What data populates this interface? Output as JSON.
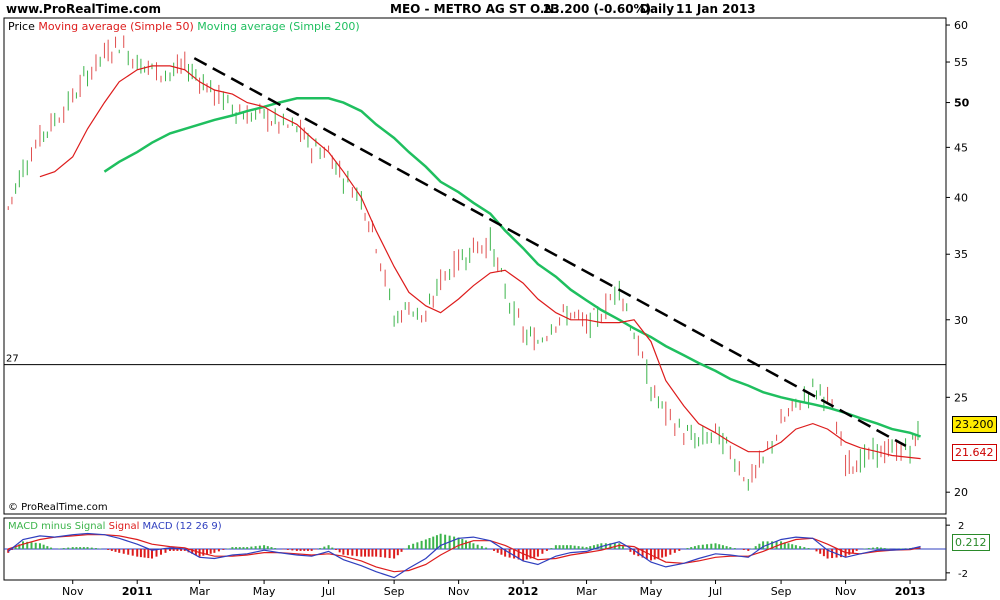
{
  "header": {
    "site": "www.ProRealTime.com",
    "instrument": "MEO - METRO AG ST O.N.",
    "quote": "23.200 (-0.60%)",
    "period": "Daily",
    "date": "11 Jan 2013"
  },
  "watermark": "© ProRealTime.com",
  "colors": {
    "price_up": "#3cb44b",
    "price_down": "#e05050",
    "sma50": "#dd1c1c",
    "sma200": "#1fbf5f",
    "trendline": "#000000",
    "macd": "#2f3fbf",
    "histogram": "#3cb44b",
    "signal": "#dd1c1c"
  },
  "chart_data": [
    {
      "type": "line",
      "name": "price",
      "legend": {
        "price": "Price",
        "sma50": "Moving average (Simple 50)",
        "sma200": "Moving average (Simple 200)"
      },
      "scale": "log",
      "ylim": [
        19,
        61
      ],
      "yticks": [
        20,
        25,
        30,
        35,
        40,
        45,
        50,
        55,
        60
      ],
      "bold_ticks": [
        50
      ],
      "reference_line": {
        "value": 27,
        "label": "27"
      },
      "xticks": [
        "Nov",
        "2011",
        "Mar",
        "May",
        "Jul",
        "Sep",
        "Nov",
        "2012",
        "Mar",
        "May",
        "Jul",
        "Sep",
        "Nov",
        "2013"
      ],
      "x": [
        "2010-09-01",
        "2010-09-15",
        "2010-10-01",
        "2010-10-15",
        "2010-11-01",
        "2010-11-15",
        "2010-12-01",
        "2010-12-15",
        "2011-01-01",
        "2011-01-15",
        "2011-02-01",
        "2011-02-15",
        "2011-03-01",
        "2011-03-15",
        "2011-04-01",
        "2011-04-15",
        "2011-05-01",
        "2011-05-15",
        "2011-06-01",
        "2011-06-15",
        "2011-07-01",
        "2011-07-15",
        "2011-08-01",
        "2011-08-15",
        "2011-09-01",
        "2011-09-15",
        "2011-10-01",
        "2011-10-15",
        "2011-11-01",
        "2011-11-15",
        "2011-12-01",
        "2011-12-15",
        "2012-01-01",
        "2012-01-15",
        "2012-02-01",
        "2012-02-15",
        "2012-03-01",
        "2012-03-15",
        "2012-04-01",
        "2012-04-15",
        "2012-05-01",
        "2012-05-15",
        "2012-06-01",
        "2012-06-15",
        "2012-07-01",
        "2012-07-15",
        "2012-08-01",
        "2012-08-15",
        "2012-09-01",
        "2012-09-15",
        "2012-10-01",
        "2012-10-15",
        "2012-11-01",
        "2012-11-15",
        "2012-12-01",
        "2012-12-15",
        "2013-01-01",
        "2013-01-11"
      ],
      "price": [
        39,
        43,
        46,
        48,
        50.5,
        53.5,
        56,
        57.5,
        55,
        54,
        53.5,
        54.5,
        53,
        51,
        49.5,
        48.5,
        48.5,
        47.5,
        47,
        45,
        44.5,
        42,
        40,
        36,
        30,
        31,
        30,
        33,
        34.5,
        35.5,
        36,
        32,
        29,
        28.5,
        30,
        30.5,
        29.5,
        30.5,
        32.5,
        29,
        25.5,
        24,
        23,
        22.5,
        23,
        22,
        20.5,
        21.5,
        23.5,
        24.5,
        25.5,
        25,
        21.5,
        21.5,
        22,
        22,
        22.2,
        23.2
      ],
      "sma50": [
        null,
        null,
        42,
        42.5,
        44,
        47,
        50,
        52.5,
        54,
        54.5,
        54.5,
        54,
        52.5,
        51.5,
        51,
        50,
        49.5,
        48.5,
        47.5,
        46,
        44.5,
        42.5,
        40,
        37,
        34,
        32,
        31,
        30.5,
        31.5,
        32.5,
        33.5,
        33.7,
        32.7,
        31.5,
        30.5,
        30,
        30,
        29.8,
        29.8,
        30,
        28.5,
        26,
        24.5,
        23.5,
        23,
        22.5,
        22,
        22,
        22.5,
        23.2,
        23.5,
        23.2,
        22.5,
        22.2,
        22,
        21.8,
        21.7,
        21.642
      ],
      "sma200": [
        null,
        null,
        null,
        null,
        null,
        null,
        42.5,
        43.5,
        44.5,
        45.5,
        46.5,
        47,
        47.5,
        48,
        48.5,
        49,
        49.5,
        50,
        50.5,
        50.5,
        50.5,
        50,
        49,
        47.5,
        46,
        44.5,
        43,
        41.5,
        40.5,
        39.5,
        38.5,
        37,
        35.5,
        34.2,
        33.2,
        32.2,
        31.4,
        30.7,
        30,
        29.4,
        28.8,
        28.2,
        27.6,
        27.1,
        26.6,
        26.1,
        25.7,
        25.3,
        25,
        24.8,
        24.6,
        24.4,
        24.1,
        23.8,
        23.5,
        23.2,
        23,
        22.8
      ],
      "last_price_label": "23.200",
      "sma50_label": "21.642",
      "trendline": {
        "start": [
          "2011-02-24",
          55.5
        ],
        "end": [
          "2012-12-28",
          22.3
        ]
      }
    },
    {
      "type": "line",
      "name": "macd",
      "legend": {
        "hist": "MACD minus Signal",
        "signal": "Signal",
        "macd": "MACD (12 26 9)"
      },
      "ylim": [
        -2.6,
        2.6
      ],
      "yticks": [
        2,
        -2
      ],
      "zero_line": true,
      "x": [
        "2010-09-01",
        "2010-09-15",
        "2010-10-01",
        "2010-10-15",
        "2010-11-01",
        "2010-11-15",
        "2010-12-01",
        "2010-12-15",
        "2011-01-01",
        "2011-01-15",
        "2011-02-01",
        "2011-02-15",
        "2011-03-01",
        "2011-03-15",
        "2011-04-01",
        "2011-04-15",
        "2011-05-01",
        "2011-05-15",
        "2011-06-01",
        "2011-06-15",
        "2011-07-01",
        "2011-07-15",
        "2011-08-01",
        "2011-08-15",
        "2011-09-01",
        "2011-09-15",
        "2011-10-01",
        "2011-10-15",
        "2011-11-01",
        "2011-11-15",
        "2011-12-01",
        "2011-12-15",
        "2012-01-01",
        "2012-01-15",
        "2012-02-01",
        "2012-02-15",
        "2012-03-01",
        "2012-03-15",
        "2012-04-01",
        "2012-04-15",
        "2012-05-01",
        "2012-05-15",
        "2012-06-01",
        "2012-06-15",
        "2012-07-01",
        "2012-07-15",
        "2012-08-01",
        "2012-08-15",
        "2012-09-01",
        "2012-09-15",
        "2012-10-01",
        "2012-10-15",
        "2012-11-01",
        "2012-11-15",
        "2012-12-01",
        "2012-12-15",
        "2013-01-01",
        "2013-01-11"
      ],
      "macd": [
        -0.2,
        0.8,
        1.1,
        1.0,
        1.2,
        1.3,
        1.2,
        0.9,
        0.4,
        -0.1,
        0.1,
        0.0,
        -0.7,
        -0.8,
        -0.5,
        -0.4,
        -0.1,
        -0.3,
        -0.5,
        -0.6,
        -0.2,
        -0.9,
        -1.4,
        -1.9,
        -2.4,
        -1.6,
        -0.8,
        0.3,
        0.9,
        1.0,
        0.7,
        -0.1,
        -1.0,
        -1.3,
        -0.6,
        -0.3,
        -0.2,
        0.2,
        0.6,
        -0.1,
        -1.1,
        -1.5,
        -1.2,
        -0.8,
        -0.4,
        -0.5,
        -0.7,
        0.2,
        0.8,
        1.0,
        0.9,
        -0.1,
        -0.7,
        -0.4,
        -0.1,
        -0.1,
        0.0,
        0.212
      ],
      "signal": [
        0.0,
        0.4,
        0.8,
        1.0,
        1.1,
        1.2,
        1.2,
        1.1,
        0.8,
        0.4,
        0.2,
        0.1,
        -0.3,
        -0.6,
        -0.6,
        -0.5,
        -0.3,
        -0.3,
        -0.4,
        -0.5,
        -0.4,
        -0.6,
        -1.0,
        -1.5,
        -1.9,
        -1.8,
        -1.3,
        -0.5,
        0.3,
        0.7,
        0.7,
        0.3,
        -0.4,
        -0.9,
        -0.8,
        -0.5,
        -0.3,
        -0.1,
        0.3,
        0.2,
        -0.5,
        -1.1,
        -1.2,
        -1.0,
        -0.7,
        -0.6,
        -0.6,
        -0.2,
        0.4,
        0.8,
        0.9,
        0.4,
        -0.3,
        -0.4,
        -0.2,
        -0.1,
        -0.05,
        0.1
      ],
      "last_value_label": "0.212"
    }
  ]
}
